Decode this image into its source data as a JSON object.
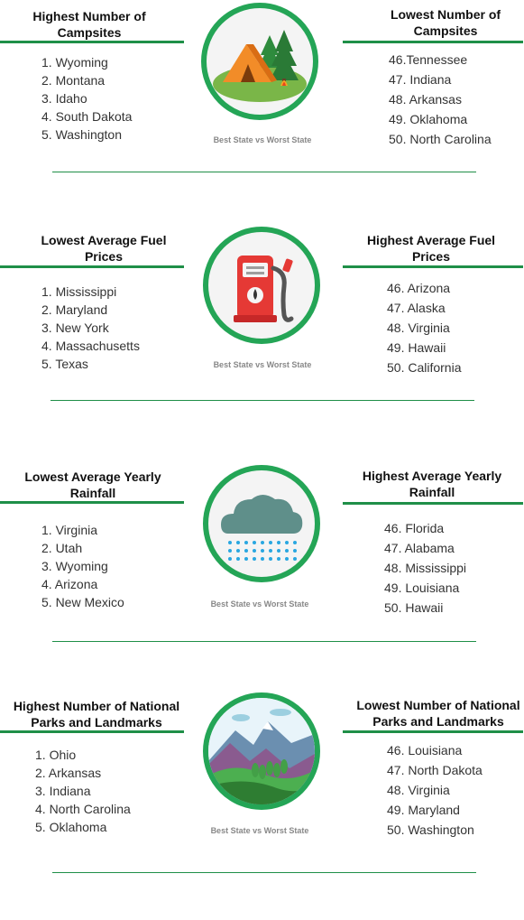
{
  "caption": "Best State vs Worst State",
  "colors": {
    "accent": "#24a556",
    "rule": "#1f8f48"
  },
  "sections": [
    {
      "icon": "campsite-tent-icon",
      "left_title": "Highest Number of Campsites",
      "right_title": "Lowest Number of Campsites",
      "left_items": [
        "1. Wyoming",
        "2. Montana",
        "3. Idaho",
        "4. South Dakota",
        "5. Washington"
      ],
      "right_items": [
        "46.Tennessee",
        "47. Indiana",
        "48. Arkansas",
        "49. Oklahoma",
        "50. North Carolina"
      ]
    },
    {
      "icon": "fuel-pump-icon",
      "left_title": "Lowest Average Fuel Prices",
      "right_title": "Highest Average Fuel Prices",
      "left_items": [
        "1. Mississippi",
        "2. Maryland",
        "3. New York",
        "4. Massachusetts",
        "5. Texas"
      ],
      "right_items": [
        "46. Arizona",
        "47. Alaska",
        "48. Virginia",
        "49. Hawaii",
        "50. California"
      ]
    },
    {
      "icon": "rain-cloud-icon",
      "left_title": "Lowest Average Yearly Rainfall",
      "right_title": "Highest Average Yearly Rainfall",
      "left_items": [
        "1. Virginia",
        "2. Utah",
        "3. Wyoming",
        "4. Arizona",
        "5. New Mexico"
      ],
      "right_items": [
        "46. Florida",
        "47. Alabama",
        "48. Mississippi",
        "49. Louisiana",
        "50. Hawaii"
      ]
    },
    {
      "icon": "mountain-landscape-icon",
      "left_title": "Highest Number of National Parks and Landmarks",
      "right_title": "Lowest Number of National Parks and Landmarks",
      "left_items": [
        "1. Ohio",
        "2. Arkansas",
        "3. Indiana",
        "4. North Carolina",
        "5. Oklahoma"
      ],
      "right_items": [
        "46.  Louisiana",
        "47. North Dakota",
        "48. Virginia",
        "49. Maryland",
        "50. Washington"
      ]
    }
  ]
}
